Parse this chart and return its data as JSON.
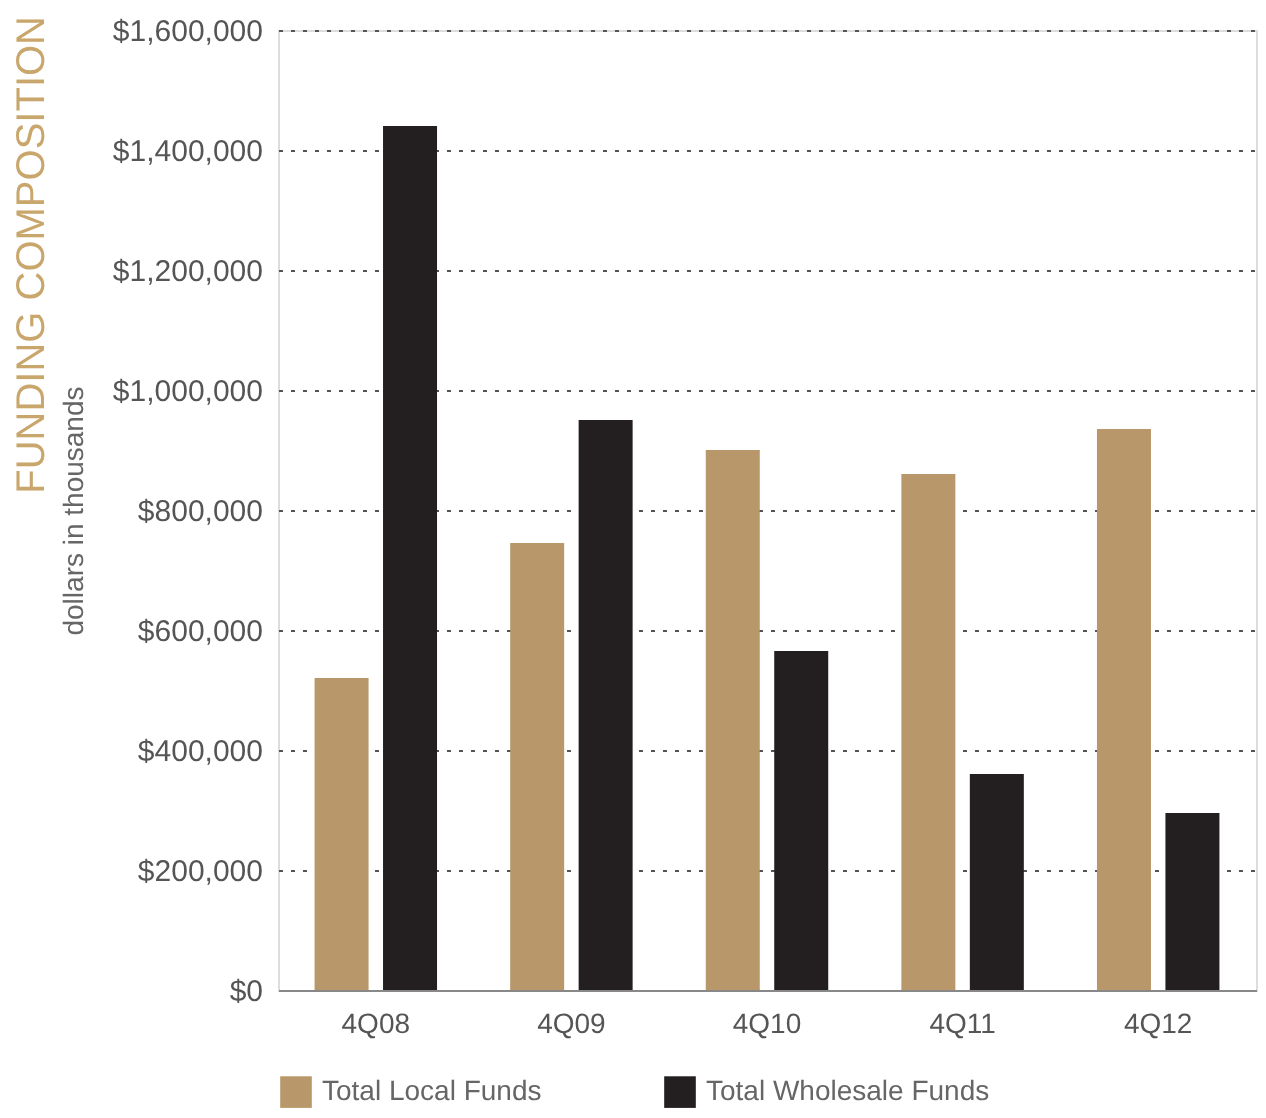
{
  "chart_data": {
    "type": "bar",
    "title": "FUNDING COMPOSITION",
    "ylabel": "dollars in thousands",
    "categories": [
      "4Q08",
      "4Q09",
      "4Q10",
      "4Q11",
      "4Q12"
    ],
    "series": [
      {
        "name": "Total Local Funds",
        "color": "#b8986a",
        "values": [
          520000,
          745000,
          900000,
          860000,
          935000
        ]
      },
      {
        "name": "Total Wholesale Funds",
        "color": "#231f20",
        "values": [
          1440000,
          950000,
          565000,
          360000,
          295000
        ]
      }
    ],
    "ylim": [
      0,
      1600000
    ],
    "yticks": [
      {
        "value": 0,
        "label": "$0"
      },
      {
        "value": 200000,
        "label": "$200,000"
      },
      {
        "value": 400000,
        "label": "$400,000"
      },
      {
        "value": 600000,
        "label": "$600,000"
      },
      {
        "value": 800000,
        "label": "$800,000"
      },
      {
        "value": 1000000,
        "label": "$1,000,000"
      },
      {
        "value": 1200000,
        "label": "$1,200,000"
      },
      {
        "value": 1400000,
        "label": "$1,400,000"
      },
      {
        "value": 1600000,
        "label": "$1,600,000"
      }
    ],
    "grid": "y",
    "legend": "bottom"
  }
}
